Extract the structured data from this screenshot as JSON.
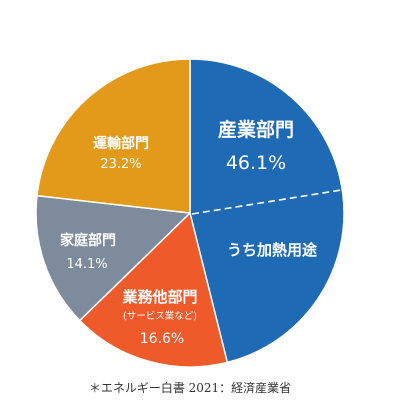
{
  "chart_data": {
    "type": "pie",
    "slices": [
      {
        "label": "産業部門",
        "value": 46.1,
        "value_label": "46.1%",
        "color": "#1E6AB5",
        "sub_segment": {
          "label": "うち加熱用途",
          "value": 23.5
        }
      },
      {
        "label": "業務他部門",
        "sublabel": "(サービス業など)",
        "value": 16.6,
        "value_label": "16.6%",
        "color": "#EE5A2A"
      },
      {
        "label": "家庭部門",
        "value": 14.1,
        "value_label": "14.1%",
        "color": "#7D8B9C"
      },
      {
        "label": "運輸部門",
        "value": 23.2,
        "value_label": "23.2%",
        "color": "#E39A1B"
      }
    ]
  },
  "source_note": "＊エネルギー白書 2021：経済産業省"
}
